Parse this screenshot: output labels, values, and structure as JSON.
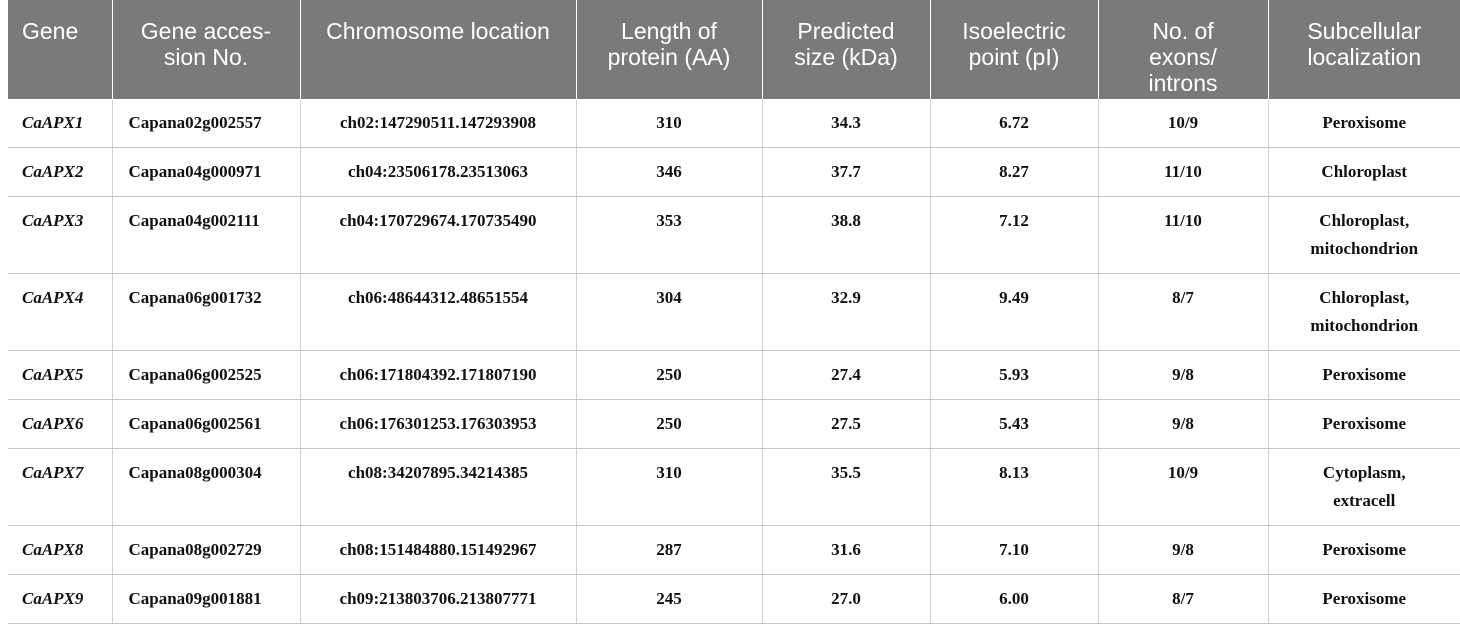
{
  "table": {
    "headers": [
      [
        "Gene"
      ],
      [
        "Gene acces-",
        "sion No."
      ],
      [
        "Chromosome location"
      ],
      [
        "Length of",
        "protein (AA)"
      ],
      [
        "Predicted",
        "size (kDa)"
      ],
      [
        "Isoelectric",
        "point (pI)"
      ],
      [
        "No. of",
        "exons/",
        "introns"
      ],
      [
        "Subcellular",
        "localization"
      ]
    ],
    "rows": [
      {
        "gene": "CaAPX1",
        "accession": "Capana02g002557",
        "location": "ch02:147290511.147293908",
        "length": "310",
        "size": "34.3",
        "pi": "6.72",
        "exons": "10/9",
        "localization": [
          "Peroxisome"
        ]
      },
      {
        "gene": "CaAPX2",
        "accession": "Capana04g000971",
        "location": "ch04:23506178.23513063",
        "length": "346",
        "size": "37.7",
        "pi": "8.27",
        "exons": "11/10",
        "localization": [
          "Chloroplast"
        ]
      },
      {
        "gene": "CaAPX3",
        "accession": "Capana04g002111",
        "location": "ch04:170729674.170735490",
        "length": "353",
        "size": "38.8",
        "pi": "7.12",
        "exons": "11/10",
        "localization": [
          "Chloroplast,",
          "mitochondrion"
        ]
      },
      {
        "gene": "CaAPX4",
        "accession": "Capana06g001732",
        "location": "ch06:48644312.48651554",
        "length": "304",
        "size": "32.9",
        "pi": "9.49",
        "exons": "8/7",
        "localization": [
          "Chloroplast,",
          "mitochondrion"
        ]
      },
      {
        "gene": "CaAPX5",
        "accession": "Capana06g002525",
        "location": "ch06:171804392.171807190",
        "length": "250",
        "size": "27.4",
        "pi": "5.93",
        "exons": "9/8",
        "localization": [
          "Peroxisome"
        ]
      },
      {
        "gene": "CaAPX6",
        "accession": "Capana06g002561",
        "location": "ch06:176301253.176303953",
        "length": "250",
        "size": "27.5",
        "pi": "5.43",
        "exons": "9/8",
        "localization": [
          "Peroxisome"
        ]
      },
      {
        "gene": "CaAPX7",
        "accession": "Capana08g000304",
        "location": "ch08:34207895.34214385",
        "length": "310",
        "size": "35.5",
        "pi": "8.13",
        "exons": "10/9",
        "localization": [
          "Cytoplasm,",
          "extracell"
        ]
      },
      {
        "gene": "CaAPX8",
        "accession": "Capana08g002729",
        "location": "ch08:151484880.151492967",
        "length": "287",
        "size": "31.6",
        "pi": "7.10",
        "exons": "9/8",
        "localization": [
          "Peroxisome"
        ]
      },
      {
        "gene": "CaAPX9",
        "accession": "Capana09g001881",
        "location": "ch09:213803706.213807771",
        "length": "245",
        "size": "27.0",
        "pi": "6.00",
        "exons": "8/7",
        "localization": [
          "Peroxisome"
        ]
      }
    ]
  }
}
